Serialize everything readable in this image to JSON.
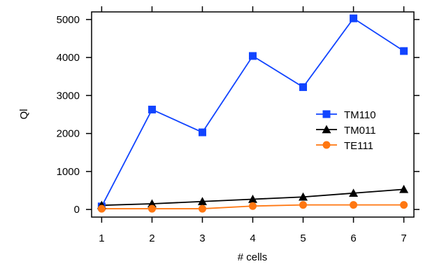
{
  "chart_data": {
    "type": "line",
    "xlabel": "# cells",
    "ylabel": "Ql",
    "x": [
      1,
      2,
      3,
      4,
      5,
      6,
      7
    ],
    "xlim": [
      0.8,
      7.2
    ],
    "ylim": [
      -200,
      5200
    ],
    "xticks": [
      1,
      2,
      3,
      4,
      5,
      6,
      7
    ],
    "yticks": [
      0,
      1000,
      2000,
      3000,
      4000,
      5000
    ],
    "grid": false,
    "legend_position": "right",
    "series": [
      {
        "name": "TM110",
        "color": "#1144ff",
        "marker": "square",
        "values": [
          80,
          2630,
          2030,
          4040,
          3220,
          5030,
          4170
        ]
      },
      {
        "name": "TM011",
        "color": "#000000",
        "marker": "triangle",
        "values": [
          110,
          150,
          210,
          270,
          330,
          430,
          530
        ]
      },
      {
        "name": "TE111",
        "color": "#ff7711",
        "marker": "circle",
        "values": [
          20,
          20,
          20,
          90,
          120,
          120,
          120
        ]
      }
    ]
  }
}
